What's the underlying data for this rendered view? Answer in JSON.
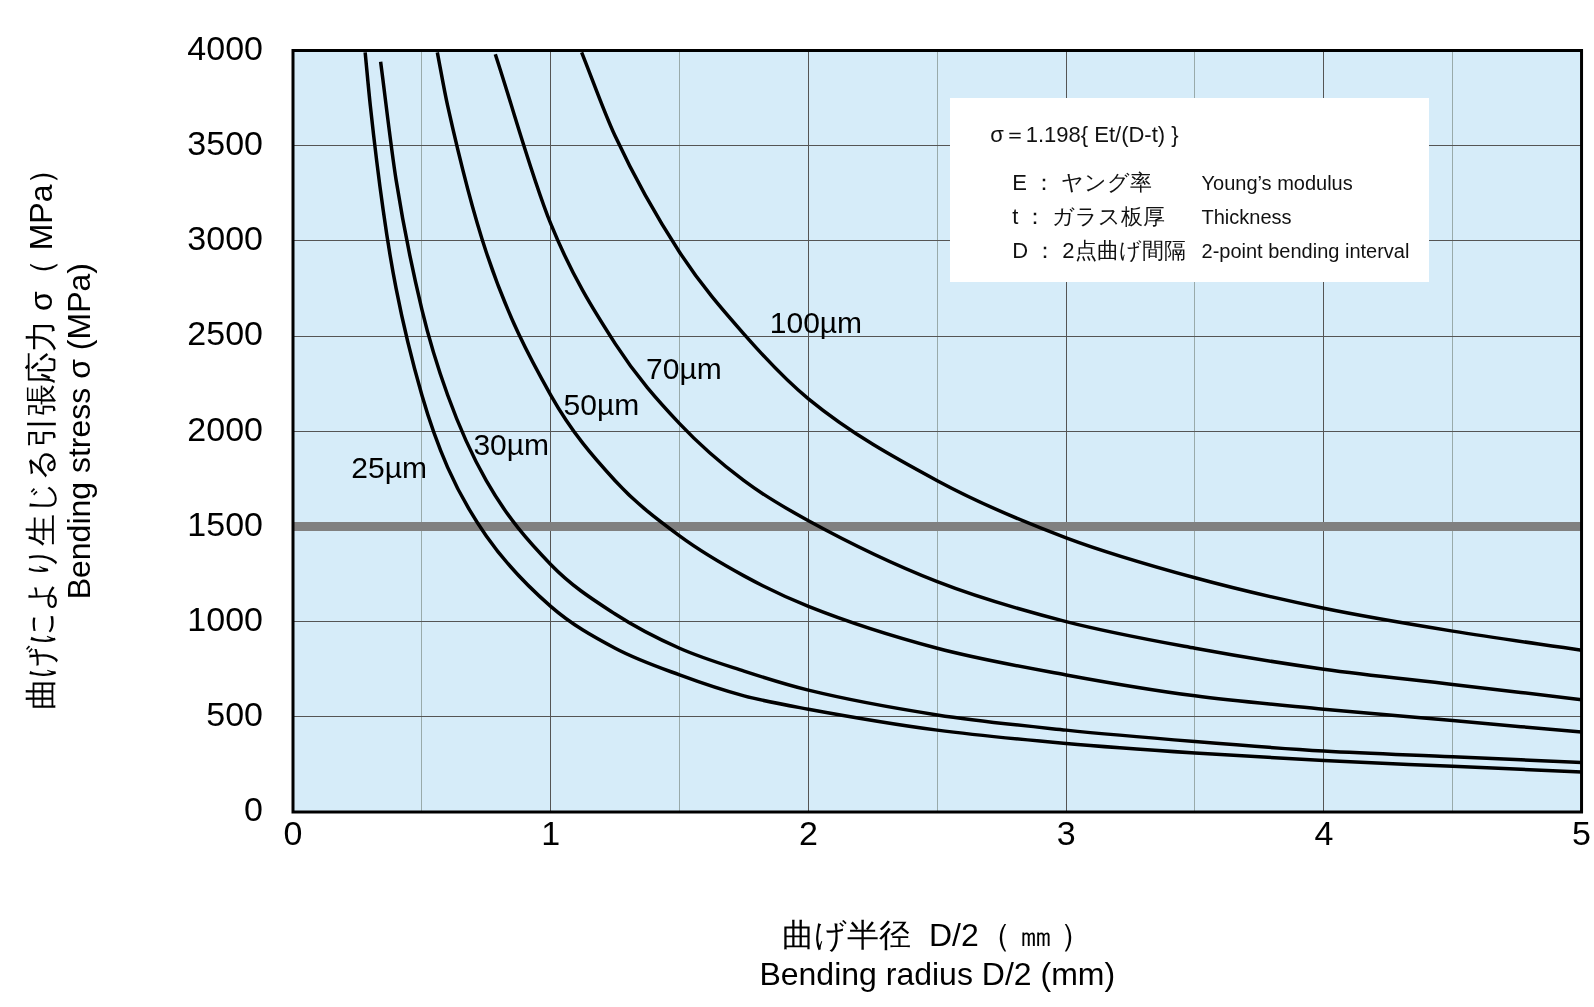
{
  "chart_data": {
    "type": "line",
    "xlabel": "曲げ半径  D/2（ ㎜ ）\nBending radius D/2 (mm)",
    "ylabel": "曲げにより生じる引張応力 σ（ MPa）\nBending stress σ (MPa)",
    "xlim": [
      0,
      5
    ],
    "xticks": [
      0,
      {
        "value": 0.5,
        "label": null
      },
      1,
      {
        "value": 1.5,
        "label": null
      },
      2,
      {
        "value": 2.5,
        "label": null
      },
      3,
      {
        "value": 3.5,
        "label": null
      },
      4,
      {
        "value": 4.5,
        "label": null
      },
      5
    ],
    "ylim": [
      0,
      4000
    ],
    "yticks": [
      0,
      500,
      1000,
      1500,
      2000,
      2500,
      3000,
      3500,
      4000
    ],
    "grid": true,
    "legend": false,
    "marker": "none",
    "line_style": "solid",
    "series": [
      {
        "name": "25µm",
        "color": "#000000",
        "x": [
          0.28,
          0.3,
          0.35,
          0.4,
          0.5,
          0.6,
          0.75,
          1,
          1.25,
          1.5,
          1.75,
          2,
          2.5,
          3,
          3.5,
          4,
          4.5,
          5
        ],
        "values": [
          3990,
          3710,
          3160,
          2750,
          2190,
          1810,
          1450,
          1080,
          860,
          720,
          610,
          540,
          430,
          360,
          310,
          270,
          240,
          210
        ]
      },
      {
        "name": "30µm",
        "color": "#000000",
        "x": [
          0.34,
          0.4,
          0.5,
          0.6,
          0.75,
          1,
          1.25,
          1.5,
          1.75,
          2,
          2.5,
          3,
          3.5,
          4,
          4.5,
          5
        ],
        "values": [
          3940,
          3320,
          2640,
          2190,
          1740,
          1300,
          1040,
          860,
          740,
          640,
          510,
          430,
          370,
          320,
          290,
          260
        ]
      },
      {
        "name": "50µm",
        "color": "#000000",
        "x": [
          0.56,
          0.6,
          0.75,
          1,
          1.25,
          1.5,
          1.75,
          2,
          2.5,
          3,
          3.5,
          4,
          4.5,
          5
        ],
        "values": [
          3990,
          3710,
          2940,
          2190,
          1740,
          1450,
          1240,
          1080,
          860,
          720,
          610,
          540,
          480,
          420
        ]
      },
      {
        "name": "70µm",
        "color": "#000000",
        "x": [
          0.785,
          1,
          1.25,
          1.5,
          1.75,
          2,
          2.5,
          3,
          3.5,
          4,
          4.5,
          5
        ],
        "values": [
          3980,
          3090,
          2460,
          2040,
          1740,
          1530,
          1210,
          1000,
          860,
          750,
          670,
          590
        ]
      },
      {
        "name": "100µm",
        "color": "#000000",
        "x": [
          1.12,
          1.25,
          1.5,
          1.75,
          2,
          2.5,
          3,
          3.5,
          4,
          4.5,
          5
        ],
        "values": [
          3990,
          3550,
          2940,
          2510,
          2170,
          1740,
          1440,
          1230,
          1070,
          950,
          850
        ]
      }
    ],
    "ref_lines": [
      {
        "axis": "y",
        "value": 1500,
        "color": "#808080"
      }
    ],
    "annotations": [
      "σ＝1.198{ Et/(D-t) }",
      "E ： ヤング率",
      "Young’s modulus",
      "t ： ガラス板厚",
      "Thickness",
      "D ： 2点曲げ間隔",
      "2-point bending interval"
    ]
  }
}
